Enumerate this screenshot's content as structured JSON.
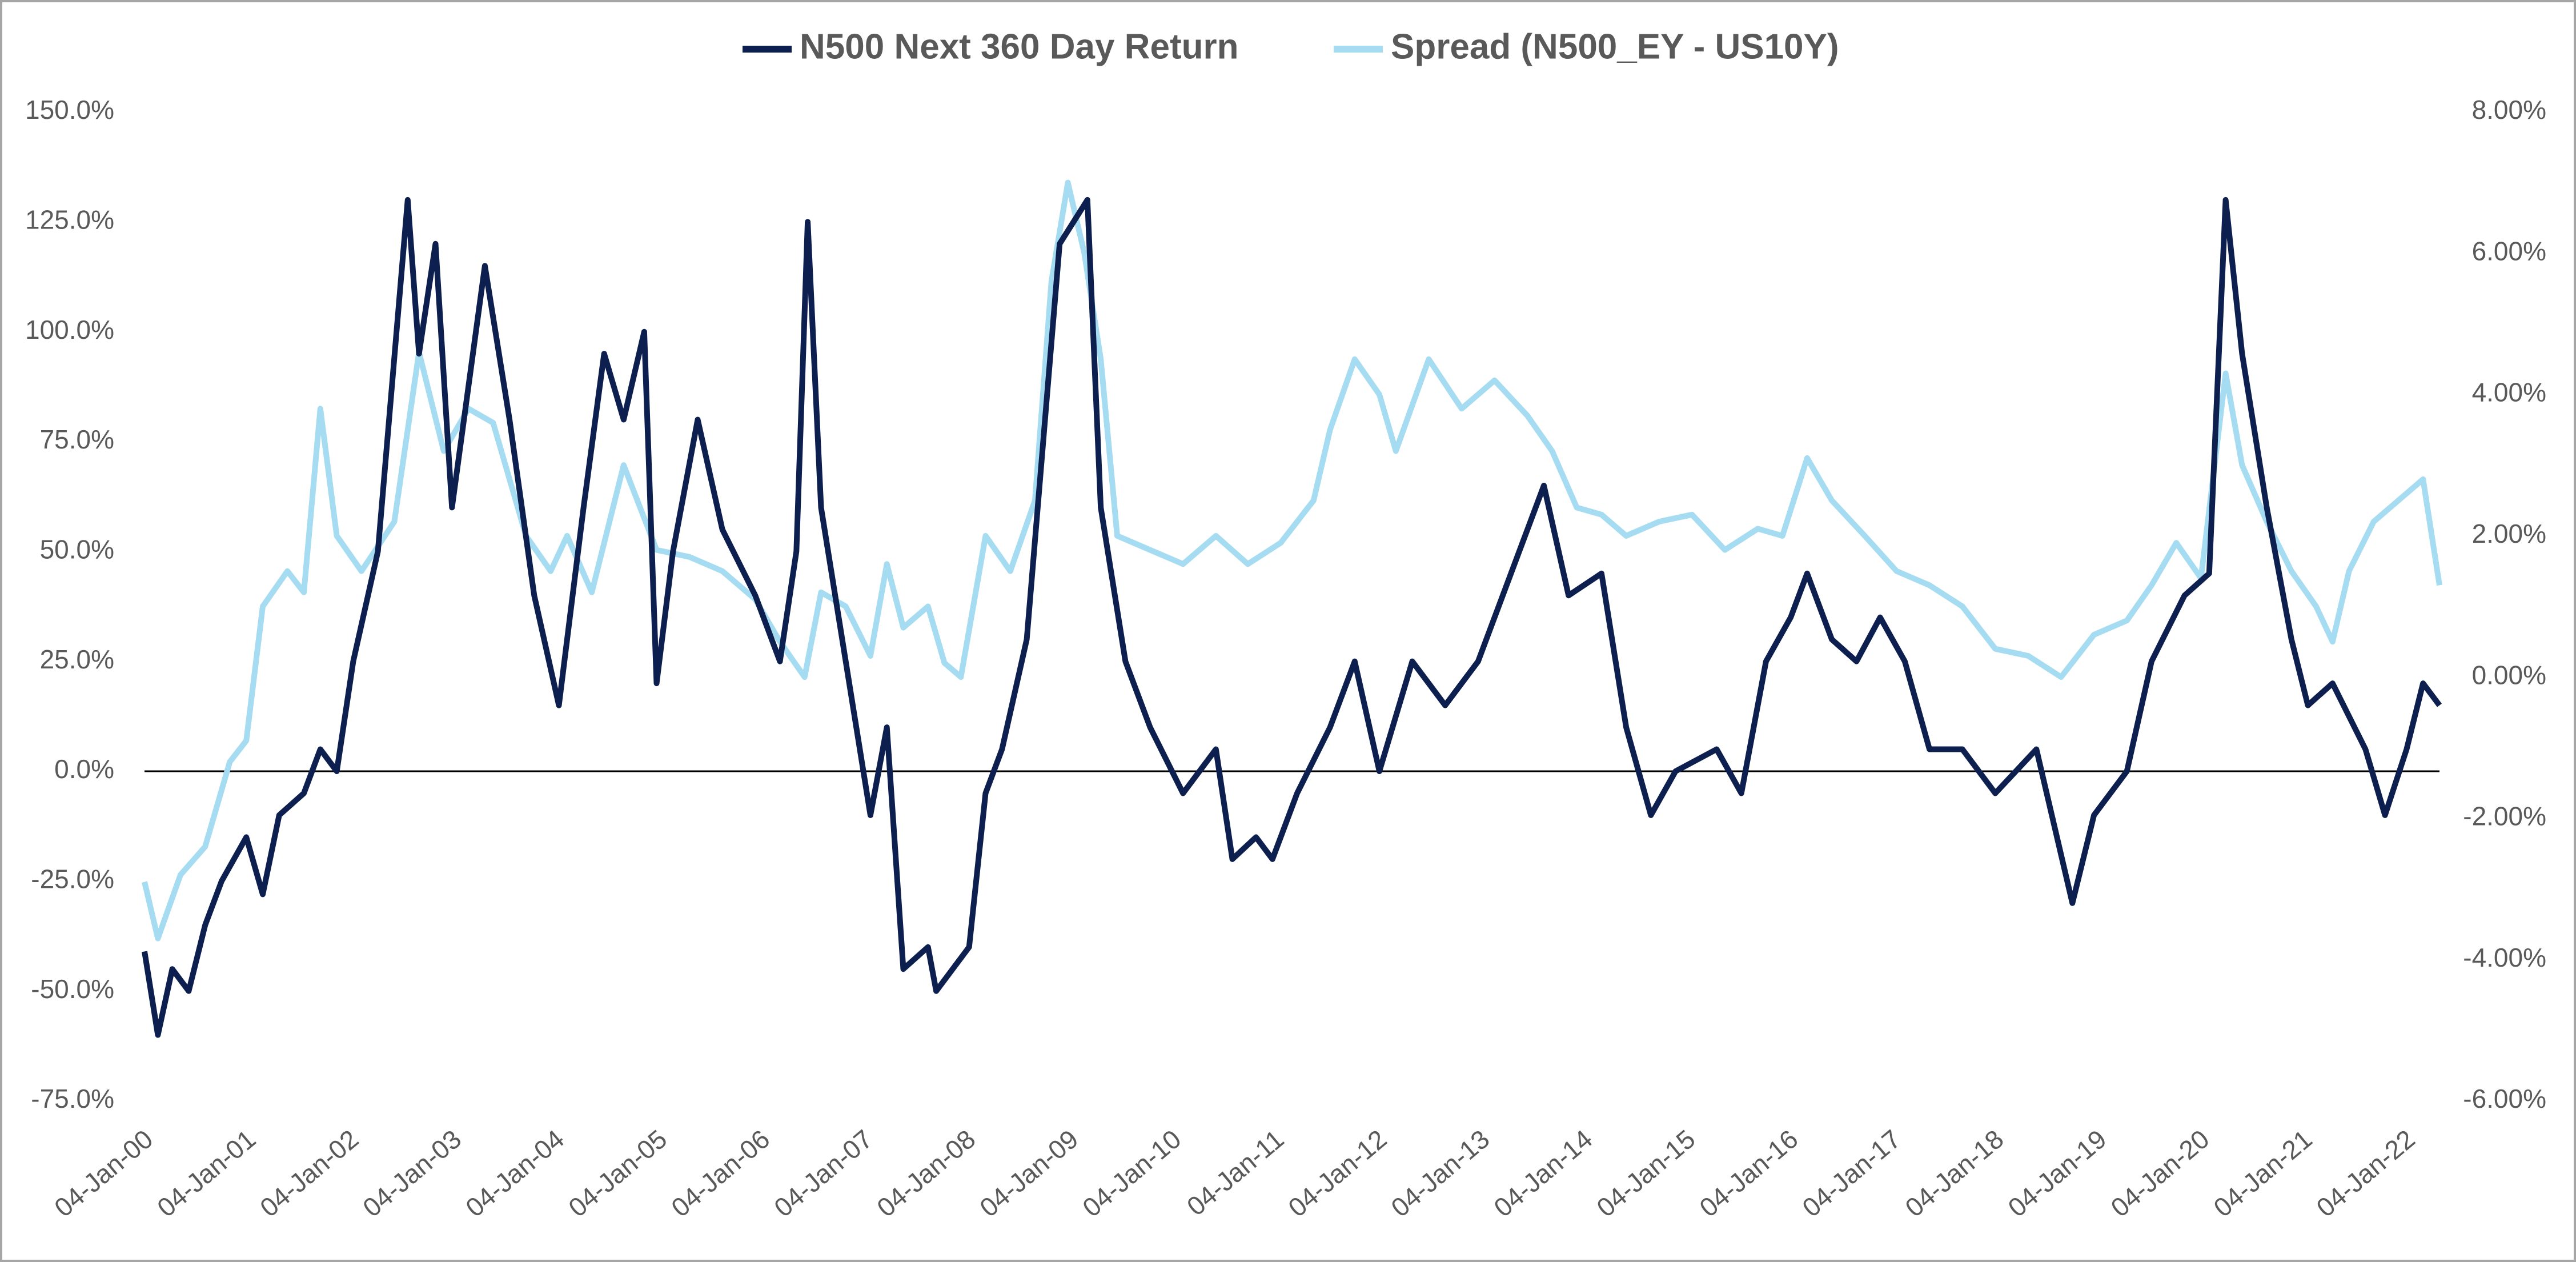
{
  "chart_data": {
    "type": "line",
    "series": [
      {
        "name": "N500 Next 360 Day Return",
        "color": "#0d1f4f",
        "axis": "y",
        "x": [
          2000.0,
          2000.13,
          2000.27,
          2000.43,
          2000.59,
          2000.75,
          2000.99,
          2001.15,
          2001.31,
          2001.55,
          2001.71,
          2001.87,
          2002.03,
          2002.27,
          2002.56,
          2002.67,
          2002.83,
          2002.99,
          2003.31,
          2003.55,
          2003.79,
          2004.03,
          2004.27,
          2004.47,
          2004.66,
          2004.86,
          2004.98,
          2005.14,
          2005.38,
          2005.62,
          2005.94,
          2006.18,
          2006.34,
          2006.45,
          2006.58,
          2006.82,
          2007.06,
          2007.22,
          2007.38,
          2007.62,
          2007.7,
          2008.02,
          2008.18,
          2008.34,
          2008.58,
          2008.9,
          2009.17,
          2009.3,
          2009.54,
          2009.78,
          2010.1,
          2010.42,
          2010.58,
          2010.81,
          2010.97,
          2011.21,
          2011.53,
          2011.77,
          2012.01,
          2012.33,
          2012.65,
          2012.97,
          2013.29,
          2013.61,
          2013.85,
          2014.17,
          2014.41,
          2014.65,
          2014.89,
          2015.29,
          2015.53,
          2015.77,
          2016.01,
          2016.17,
          2016.41,
          2016.65,
          2016.88,
          2017.12,
          2017.36,
          2017.68,
          2018.0,
          2018.4,
          2018.75,
          2018.96,
          2019.28,
          2019.52,
          2019.84,
          2020.08,
          2020.24,
          2020.4,
          2020.64,
          2020.88,
          2021.04,
          2021.28,
          2021.6,
          2021.79,
          2022.0,
          2022.16,
          2022.32
        ],
        "values": [
          -41,
          -60,
          -45,
          -50,
          -35,
          -25,
          -15,
          -28,
          -10,
          -5,
          5,
          0,
          25,
          50,
          130,
          95,
          120,
          60,
          115,
          80,
          40,
          15,
          60,
          95,
          80,
          100,
          20,
          50,
          80,
          55,
          40,
          25,
          50,
          125,
          60,
          25,
          -10,
          10,
          -45,
          -40,
          -50,
          -40,
          -5,
          5,
          30,
          120,
          130,
          60,
          25,
          10,
          -5,
          5,
          -20,
          -15,
          -20,
          -5,
          10,
          25,
          0,
          25,
          15,
          25,
          45,
          65,
          40,
          45,
          10,
          -10,
          0,
          5,
          -5,
          25,
          35,
          45,
          30,
          25,
          35,
          25,
          5,
          5,
          -5,
          5,
          -30,
          -10,
          0,
          25,
          40,
          45,
          130,
          95,
          60,
          30,
          15,
          20,
          5,
          -10,
          5,
          20,
          15
        ]
      },
      {
        "name": "Spread (N500_EY - US10Y)",
        "color": "#a6dcf2",
        "axis": "y2",
        "x": [
          2000.0,
          2000.13,
          2000.35,
          2000.59,
          2000.83,
          2000.99,
          2001.15,
          2001.39,
          2001.55,
          2001.71,
          2001.87,
          2002.11,
          2002.43,
          2002.67,
          2002.91,
          2003.15,
          2003.39,
          2003.71,
          2003.95,
          2004.11,
          2004.35,
          2004.66,
          2004.98,
          2005.3,
          2005.62,
          2005.94,
          2006.18,
          2006.42,
          2006.58,
          2006.82,
          2007.06,
          2007.22,
          2007.38,
          2007.62,
          2007.78,
          2007.94,
          2008.18,
          2008.42,
          2008.66,
          2008.82,
          2008.98,
          2009.14,
          2009.3,
          2009.46,
          2009.78,
          2010.1,
          2010.42,
          2010.73,
          2011.05,
          2011.37,
          2011.53,
          2011.77,
          2012.01,
          2012.17,
          2012.49,
          2012.81,
          2013.13,
          2013.45,
          2013.69,
          2013.93,
          2014.17,
          2014.41,
          2014.73,
          2015.05,
          2015.37,
          2015.69,
          2015.93,
          2016.17,
          2016.41,
          2016.73,
          2017.04,
          2017.36,
          2017.68,
          2018.0,
          2018.32,
          2018.64,
          2018.96,
          2019.28,
          2019.52,
          2019.76,
          2020.0,
          2020.24,
          2020.4,
          2020.64,
          2020.88,
          2021.12,
          2021.28,
          2021.44,
          2021.68,
          2021.92,
          2022.16,
          2022.32
        ],
        "values": [
          -2.9,
          -3.7,
          -2.8,
          -2.4,
          -1.2,
          -0.9,
          1.0,
          1.5,
          1.2,
          3.8,
          2.0,
          1.5,
          2.2,
          4.6,
          3.2,
          3.8,
          3.6,
          2.0,
          1.5,
          2.0,
          1.2,
          3.0,
          1.8,
          1.7,
          1.5,
          1.1,
          0.5,
          0.0,
          1.2,
          1.0,
          0.3,
          1.6,
          0.7,
          1.0,
          0.2,
          0.0,
          2.0,
          1.5,
          2.5,
          5.6,
          7.0,
          6.0,
          4.5,
          2.0,
          1.8,
          1.6,
          2.0,
          1.6,
          1.9,
          2.5,
          3.5,
          4.5,
          4.0,
          3.2,
          4.5,
          3.8,
          4.2,
          3.7,
          3.2,
          2.4,
          2.3,
          2.0,
          2.2,
          2.3,
          1.8,
          2.1,
          2.0,
          3.1,
          2.5,
          2.0,
          1.5,
          1.3,
          1.0,
          0.4,
          0.3,
          0.0,
          0.6,
          0.8,
          1.3,
          1.9,
          1.4,
          4.3,
          3.0,
          2.2,
          1.5,
          1.0,
          0.5,
          1.5,
          2.2,
          2.5,
          2.8,
          1.3
        ]
      }
    ],
    "xlim": [
      2000,
      2022.32
    ],
    "xticks": [
      {
        "value": 2000,
        "label": "04-Jan-00"
      },
      {
        "value": 2001,
        "label": "04-Jan-01"
      },
      {
        "value": 2002,
        "label": "04-Jan-02"
      },
      {
        "value": 2003,
        "label": "04-Jan-03"
      },
      {
        "value": 2004,
        "label": "04-Jan-04"
      },
      {
        "value": 2005,
        "label": "04-Jan-05"
      },
      {
        "value": 2006,
        "label": "04-Jan-06"
      },
      {
        "value": 2007,
        "label": "04-Jan-07"
      },
      {
        "value": 2008,
        "label": "04-Jan-08"
      },
      {
        "value": 2009,
        "label": "04-Jan-09"
      },
      {
        "value": 2010,
        "label": "04-Jan-10"
      },
      {
        "value": 2011,
        "label": "04-Jan-11"
      },
      {
        "value": 2012,
        "label": "04-Jan-12"
      },
      {
        "value": 2013,
        "label": "04-Jan-13"
      },
      {
        "value": 2014,
        "label": "04-Jan-14"
      },
      {
        "value": 2015,
        "label": "04-Jan-15"
      },
      {
        "value": 2016,
        "label": "04-Jan-16"
      },
      {
        "value": 2017,
        "label": "04-Jan-17"
      },
      {
        "value": 2018,
        "label": "04-Jan-18"
      },
      {
        "value": 2019,
        "label": "04-Jan-19"
      },
      {
        "value": 2020,
        "label": "04-Jan-20"
      },
      {
        "value": 2021,
        "label": "04-Jan-21"
      },
      {
        "value": 2022,
        "label": "04-Jan-22"
      }
    ],
    "ylim": [
      -75,
      150
    ],
    "yticks": [
      {
        "value": -75,
        "label": "-75.0%"
      },
      {
        "value": -50,
        "label": "-50.0%"
      },
      {
        "value": -25,
        "label": "-25.0%"
      },
      {
        "value": 0,
        "label": "0.0%"
      },
      {
        "value": 25,
        "label": "25.0%"
      },
      {
        "value": 50,
        "label": "50.0%"
      },
      {
        "value": 75,
        "label": "75.0%"
      },
      {
        "value": 100,
        "label": "100.0%"
      },
      {
        "value": 125,
        "label": "125.0%"
      },
      {
        "value": 150,
        "label": "150.0%"
      }
    ],
    "y2lim": [
      -6,
      8
    ],
    "y2ticks": [
      {
        "value": -6,
        "label": "-6.00%"
      },
      {
        "value": -4,
        "label": "-4.00%"
      },
      {
        "value": -2,
        "label": "-2.00%"
      },
      {
        "value": 0,
        "label": "0.00%"
      },
      {
        "value": 2,
        "label": "2.00%"
      },
      {
        "value": 4,
        "label": "4.00%"
      },
      {
        "value": 6,
        "label": "6.00%"
      },
      {
        "value": 8,
        "label": "8.00%"
      }
    ],
    "legend": "top",
    "grid": false
  }
}
